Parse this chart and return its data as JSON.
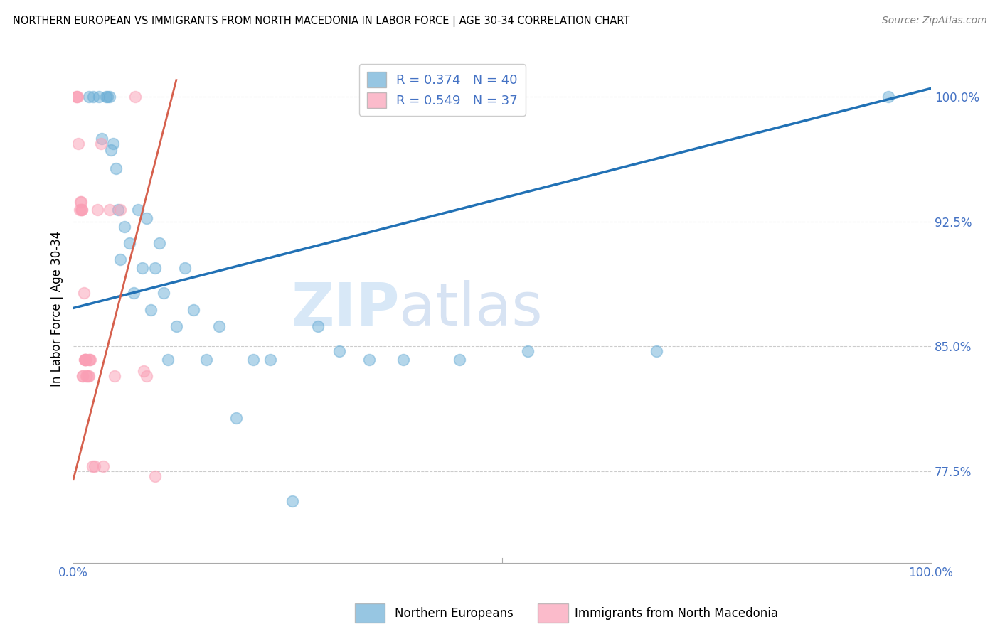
{
  "title": "NORTHERN EUROPEAN VS IMMIGRANTS FROM NORTH MACEDONIA IN LABOR FORCE | AGE 30-34 CORRELATION CHART",
  "source": "Source: ZipAtlas.com",
  "ylabel": "In Labor Force | Age 30-34",
  "xlim": [
    0.0,
    1.0
  ],
  "ylim": [
    0.72,
    1.025
  ],
  "yticks": [
    0.775,
    0.85,
    0.925,
    1.0
  ],
  "ytick_labels": [
    "77.5%",
    "85.0%",
    "92.5%",
    "100.0%"
  ],
  "blue_R": 0.374,
  "blue_N": 40,
  "pink_R": 0.549,
  "pink_N": 37,
  "blue_color": "#6baed6",
  "pink_color": "#fa9fb5",
  "blue_line_color": "#2171b5",
  "pink_line_color": "#d6604d",
  "watermark_zip": "ZIP",
  "watermark_atlas": "atlas",
  "legend_label_blue": "Northern Europeans",
  "legend_label_pink": "Immigrants from North Macedonia",
  "blue_line_x0": 0.0,
  "blue_line_y0": 0.873,
  "blue_line_x1": 1.0,
  "blue_line_y1": 1.005,
  "pink_line_x0": 0.0,
  "pink_line_y0": 0.77,
  "pink_line_x1": 0.12,
  "pink_line_y1": 1.01,
  "blue_scatter_x": [
    0.018,
    0.023,
    0.03,
    0.033,
    0.038,
    0.04,
    0.042,
    0.044,
    0.046,
    0.05,
    0.052,
    0.055,
    0.06,
    0.065,
    0.07,
    0.075,
    0.08,
    0.085,
    0.09,
    0.095,
    0.1,
    0.105,
    0.11,
    0.12,
    0.13,
    0.14,
    0.155,
    0.17,
    0.19,
    0.21,
    0.23,
    0.255,
    0.285,
    0.31,
    0.345,
    0.385,
    0.45,
    0.53,
    0.68,
    0.95
  ],
  "blue_scatter_y": [
    1.0,
    1.0,
    1.0,
    0.975,
    1.0,
    1.0,
    1.0,
    0.968,
    0.972,
    0.957,
    0.932,
    0.902,
    0.922,
    0.912,
    0.882,
    0.932,
    0.897,
    0.927,
    0.872,
    0.897,
    0.912,
    0.882,
    0.842,
    0.862,
    0.897,
    0.872,
    0.842,
    0.862,
    0.807,
    0.842,
    0.842,
    0.757,
    0.862,
    0.847,
    0.842,
    0.842,
    0.842,
    0.847,
    0.847,
    1.0
  ],
  "pink_scatter_x": [
    0.003,
    0.004,
    0.005,
    0.006,
    0.007,
    0.008,
    0.009,
    0.009,
    0.01,
    0.01,
    0.011,
    0.011,
    0.012,
    0.013,
    0.013,
    0.014,
    0.014,
    0.015,
    0.015,
    0.016,
    0.017,
    0.018,
    0.018,
    0.019,
    0.02,
    0.022,
    0.025,
    0.028,
    0.032,
    0.035,
    0.042,
    0.048,
    0.055,
    0.072,
    0.085,
    0.095,
    0.082
  ],
  "pink_scatter_y": [
    1.0,
    1.0,
    1.0,
    0.972,
    0.932,
    0.937,
    0.937,
    0.932,
    0.932,
    0.932,
    0.832,
    0.832,
    0.882,
    0.842,
    0.842,
    0.842,
    0.842,
    0.842,
    0.832,
    0.832,
    0.832,
    0.832,
    0.842,
    0.842,
    0.842,
    0.778,
    0.778,
    0.932,
    0.972,
    0.778,
    0.932,
    0.832,
    0.932,
    1.0,
    0.832,
    0.772,
    0.835
  ]
}
